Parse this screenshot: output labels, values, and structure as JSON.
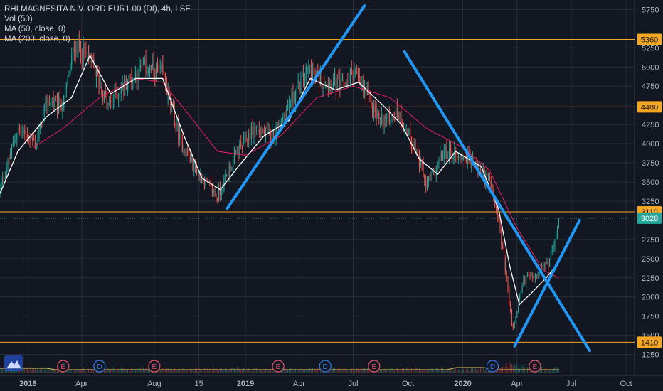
{
  "legend": {
    "title": "RHI MAGNESITA N.V. ORD EUR1.00 (DI), 4h, LSE",
    "vol": "Vol (50)",
    "ma50": "MA (50, close, 0)",
    "ma200": "MA (200, close, 0)"
  },
  "colors": {
    "background": "#131722",
    "grid": "#2a2e39",
    "axis_text": "#b2b5be",
    "up_candle": "#26a69a",
    "down_candle": "#ef5350",
    "ma50": "#ffffff",
    "ma200": "#e91e63",
    "hline": "#f5a623",
    "trendline": "#2196f3",
    "price_badge": "#26a69a"
  },
  "chart_data": {
    "type": "candlestick",
    "symbol": "RHI MAGNESITA N.V. ORD EUR1.00 (DI)",
    "interval": "4h",
    "exchange": "LSE",
    "x_ticks": [
      "2018",
      "Apr",
      "Aug",
      "15",
      "2019",
      "Apr",
      "Jul",
      "Oct",
      "2020",
      "Apr",
      "Jul",
      "Oct"
    ],
    "y_ticks": [
      1250,
      1500,
      1750,
      2000,
      2250,
      2500,
      2750,
      3250,
      3500,
      3750,
      4000,
      4250,
      4750,
      5000,
      5250,
      5750
    ],
    "ylim": [
      1150,
      5800
    ],
    "close_path": [
      {
        "date": "2017-11-15",
        "close": 3400
      },
      {
        "date": "2017-12-15",
        "close": 4200
      },
      {
        "date": "2018-01-15",
        "close": 4000
      },
      {
        "date": "2018-02-01",
        "close": 4550
      },
      {
        "date": "2018-03-01",
        "close": 4500
      },
      {
        "date": "2018-03-20",
        "close": 5300
      },
      {
        "date": "2018-04-15",
        "close": 5100
      },
      {
        "date": "2018-05-15",
        "close": 4500
      },
      {
        "date": "2018-06-15",
        "close": 4800
      },
      {
        "date": "2018-07-15",
        "close": 5000
      },
      {
        "date": "2018-08-15",
        "close": 4900
      },
      {
        "date": "2018-09-15",
        "close": 4000
      },
      {
        "date": "2018-10-15",
        "close": 3600
      },
      {
        "date": "2018-11-15",
        "close": 3300
      },
      {
        "date": "2018-12-15",
        "close": 3850
      },
      {
        "date": "2019-01-15",
        "close": 4200
      },
      {
        "date": "2019-02-15",
        "close": 4100
      },
      {
        "date": "2019-03-15",
        "close": 4500
      },
      {
        "date": "2019-04-15",
        "close": 4950
      },
      {
        "date": "2019-05-15",
        "close": 4800
      },
      {
        "date": "2019-06-15",
        "close": 4750
      },
      {
        "date": "2019-07-01",
        "close": 4950
      },
      {
        "date": "2019-07-15",
        "close": 4750
      },
      {
        "date": "2019-08-15",
        "close": 4300
      },
      {
        "date": "2019-09-15",
        "close": 4400
      },
      {
        "date": "2019-10-15",
        "close": 3900
      },
      {
        "date": "2019-11-01",
        "close": 3450
      },
      {
        "date": "2019-12-01",
        "close": 3900
      },
      {
        "date": "2020-01-15",
        "close": 3800
      },
      {
        "date": "2020-02-15",
        "close": 3500
      },
      {
        "date": "2020-03-01",
        "close": 3000
      },
      {
        "date": "2020-03-15",
        "close": 2200
      },
      {
        "date": "2020-03-25",
        "close": 1550
      },
      {
        "date": "2020-04-10",
        "close": 2200
      },
      {
        "date": "2020-05-01",
        "close": 2300
      },
      {
        "date": "2020-05-25",
        "close": 2450
      },
      {
        "date": "2020-06-10",
        "close": 3028
      }
    ],
    "ma50_path": [
      {
        "date": "2017-11-15",
        "close": 3350
      },
      {
        "date": "2017-12-15",
        "close": 3900
      },
      {
        "date": "2018-02-01",
        "close": 4350
      },
      {
        "date": "2018-03-15",
        "close": 4600
      },
      {
        "date": "2018-04-15",
        "close": 5150
      },
      {
        "date": "2018-05-20",
        "close": 4650
      },
      {
        "date": "2018-07-01",
        "close": 4850
      },
      {
        "date": "2018-08-15",
        "close": 4850
      },
      {
        "date": "2018-09-20",
        "close": 4100
      },
      {
        "date": "2018-10-20",
        "close": 3550
      },
      {
        "date": "2018-11-20",
        "close": 3400
      },
      {
        "date": "2018-12-20",
        "close": 3700
      },
      {
        "date": "2019-02-01",
        "close": 4100
      },
      {
        "date": "2019-03-15",
        "close": 4300
      },
      {
        "date": "2019-04-20",
        "close": 4850
      },
      {
        "date": "2019-06-01",
        "close": 4700
      },
      {
        "date": "2019-07-10",
        "close": 4800
      },
      {
        "date": "2019-08-20",
        "close": 4500
      },
      {
        "date": "2019-09-20",
        "close": 4250
      },
      {
        "date": "2019-10-20",
        "close": 3800
      },
      {
        "date": "2019-11-20",
        "close": 3600
      },
      {
        "date": "2019-12-20",
        "close": 3900
      },
      {
        "date": "2020-02-01",
        "close": 3700
      },
      {
        "date": "2020-03-01",
        "close": 3150
      },
      {
        "date": "2020-03-20",
        "close": 2400
      },
      {
        "date": "2020-04-05",
        "close": 1900
      },
      {
        "date": "2020-04-25",
        "close": 2050
      },
      {
        "date": "2020-05-20",
        "close": 2250
      },
      {
        "date": "2020-06-05",
        "close": 2400
      }
    ],
    "ma200_path": [
      {
        "date": "2018-01-10",
        "close": 3950
      },
      {
        "date": "2018-03-01",
        "close": 4200
      },
      {
        "date": "2018-05-01",
        "close": 4600
      },
      {
        "date": "2018-07-01",
        "close": 4850
      },
      {
        "date": "2018-08-15",
        "close": 4800
      },
      {
        "date": "2018-10-01",
        "close": 4350
      },
      {
        "date": "2018-11-15",
        "close": 3900
      },
      {
        "date": "2019-01-01",
        "close": 3850
      },
      {
        "date": "2019-03-01",
        "close": 4100
      },
      {
        "date": "2019-05-01",
        "close": 4600
      },
      {
        "date": "2019-07-01",
        "close": 4750
      },
      {
        "date": "2019-09-01",
        "close": 4600
      },
      {
        "date": "2019-11-01",
        "close": 4200
      },
      {
        "date": "2020-01-01",
        "close": 3950
      },
      {
        "date": "2020-02-15",
        "close": 3650
      },
      {
        "date": "2020-04-01",
        "close": 2900
      },
      {
        "date": "2020-05-15",
        "close": 2350
      },
      {
        "date": "2020-06-10",
        "close": 2250
      }
    ],
    "horizontal_lines": [
      5360,
      4480,
      3110,
      1410
    ],
    "current_price": 3028,
    "trendlines": [
      {
        "from": {
          "date": "2018-12-01",
          "price": 3150
        },
        "to": {
          "date": "2019-07-20",
          "price": 5800
        }
      },
      {
        "from": {
          "date": "2019-09-25",
          "price": 5200
        },
        "to": {
          "date": "2020-08-01",
          "price": 1300
        }
      },
      {
        "from": {
          "date": "2020-03-28",
          "price": 1360
        },
        "to": {
          "date": "2020-07-15",
          "price": 3000
        }
      }
    ],
    "events": [
      {
        "date": "2018-03-01",
        "label": "E"
      },
      {
        "date": "2018-05-01",
        "label": "D"
      },
      {
        "date": "2018-08-01",
        "label": "E"
      },
      {
        "date": "2019-02-25",
        "label": "E"
      },
      {
        "date": "2019-05-15",
        "label": "D"
      },
      {
        "date": "2019-08-05",
        "label": "E"
      },
      {
        "date": "2020-02-20",
        "label": "D"
      },
      {
        "date": "2020-05-01",
        "label": "E"
      }
    ]
  }
}
